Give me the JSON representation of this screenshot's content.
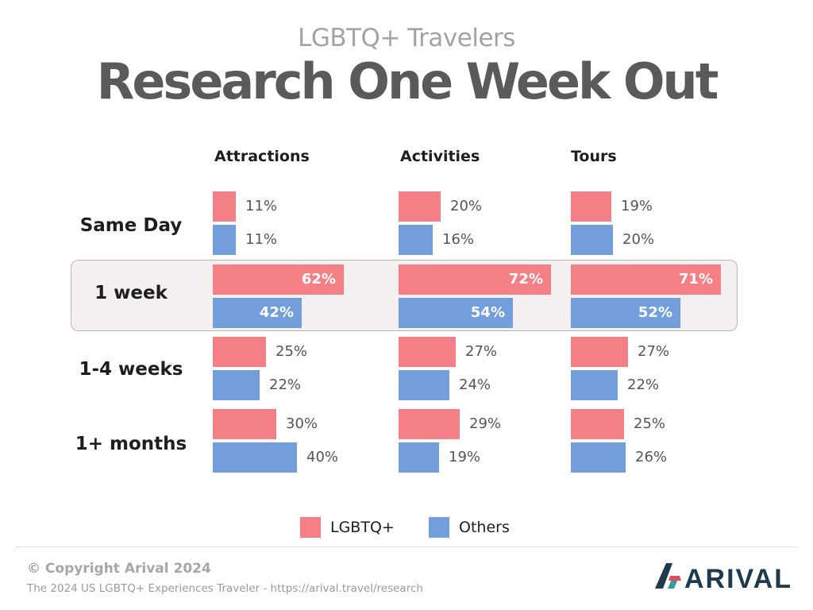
{
  "header": {
    "subtitle": "LGBTQ+ Travelers",
    "title": "Research One Week Out"
  },
  "chart_data": {
    "type": "bar",
    "orientation": "horizontal",
    "panels": [
      "Attractions",
      "Activities",
      "Tours"
    ],
    "categories": [
      "Same Day",
      "1 week",
      "1-4 weeks",
      "1+ months"
    ],
    "highlighted_category": "1 week",
    "unit": "%",
    "series": [
      {
        "name": "LGBTQ+",
        "color": "#f47f86",
        "values": {
          "Attractions": [
            11,
            62,
            25,
            30
          ],
          "Activities": [
            20,
            72,
            27,
            29
          ],
          "Tours": [
            19,
            71,
            27,
            25
          ]
        }
      },
      {
        "name": "Others",
        "color": "#729fdb",
        "values": {
          "Attractions": [
            11,
            42,
            22,
            40
          ],
          "Activities": [
            16,
            54,
            24,
            19
          ],
          "Tours": [
            20,
            52,
            22,
            26
          ]
        }
      }
    ],
    "legend": [
      "LGBTQ+",
      "Others"
    ],
    "legend_position": "bottom-center",
    "grid": false
  },
  "footer": {
    "copyright": "© Copyright Arival 2024",
    "source": "The 2024 US LGBTQ+ Experiences Traveler - https://arival.travel/research",
    "logo_text": "ARIVAL",
    "logo_colors": [
      "#1f3a4d",
      "#2f9fa0",
      "#e8485a"
    ]
  }
}
